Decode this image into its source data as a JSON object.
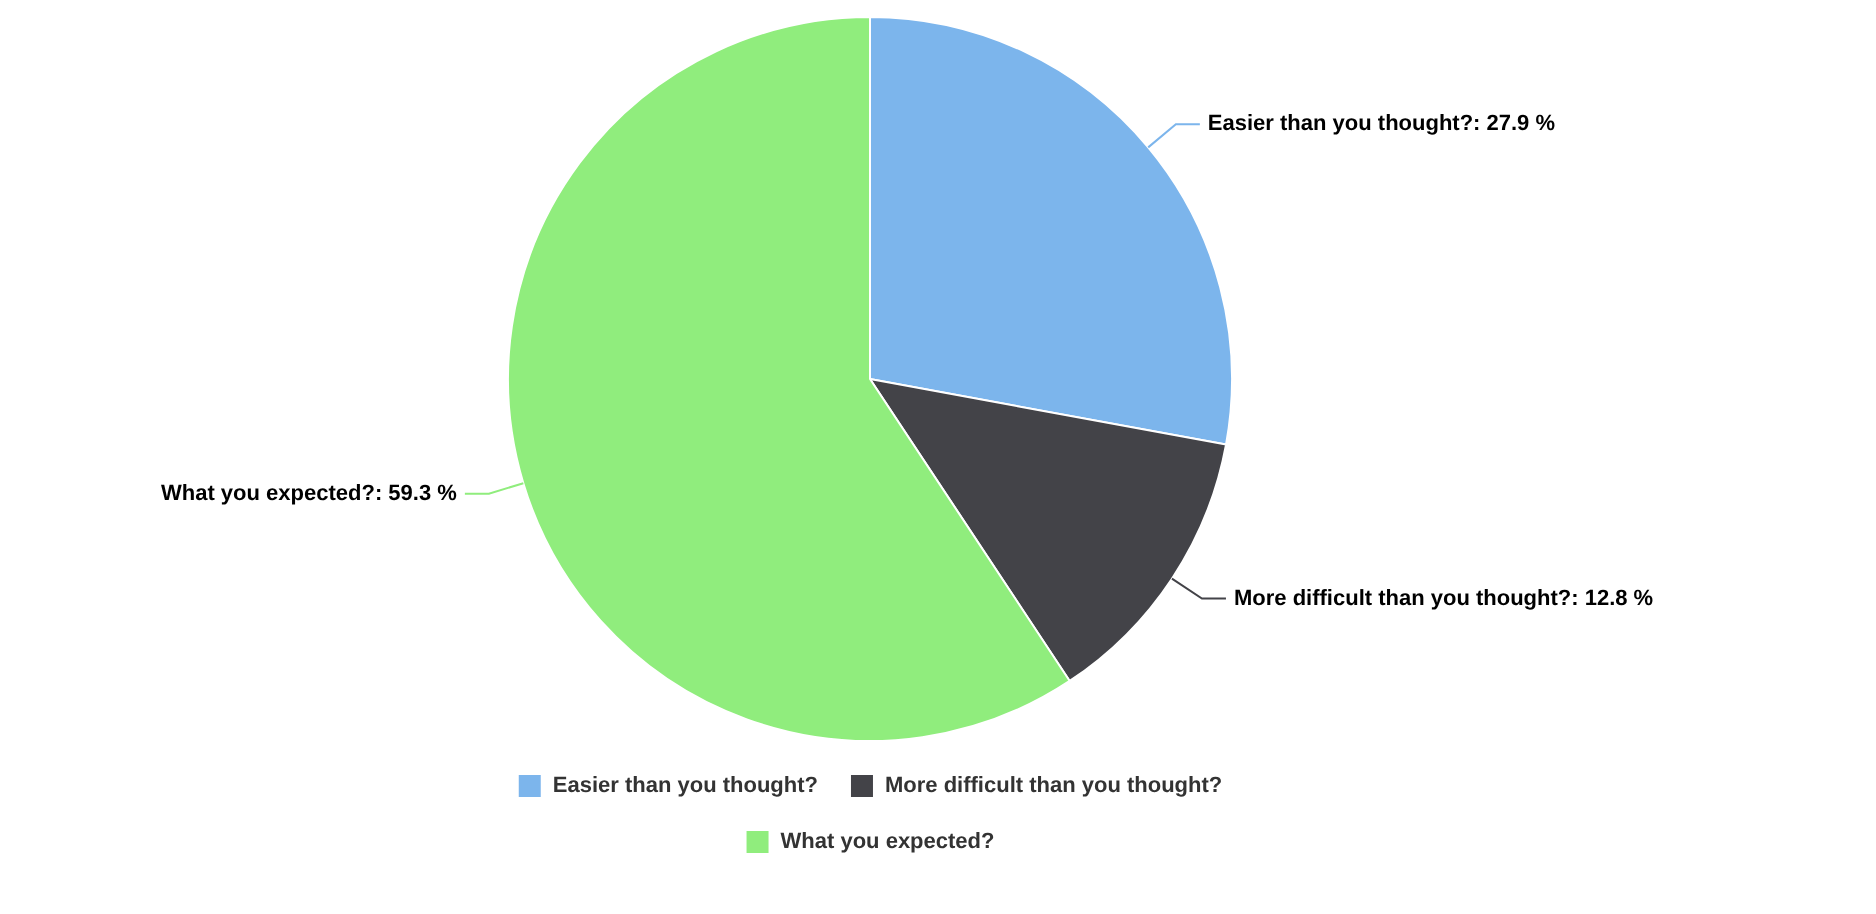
{
  "chart_data": {
    "type": "pie",
    "categories": [
      "Easier than you thought?",
      "More difficult than you thought?",
      "What you expected?"
    ],
    "values": [
      27.9,
      12.8,
      59.3
    ],
    "colors": [
      "#7cb5ec",
      "#434348",
      "#90ed7d"
    ],
    "value_labels": [
      "Easier than you thought?: 27.9 %",
      "More difficult than you thought?: 12.8 %",
      "What you expected?: 59.3 %"
    ],
    "legend": "bottom"
  }
}
